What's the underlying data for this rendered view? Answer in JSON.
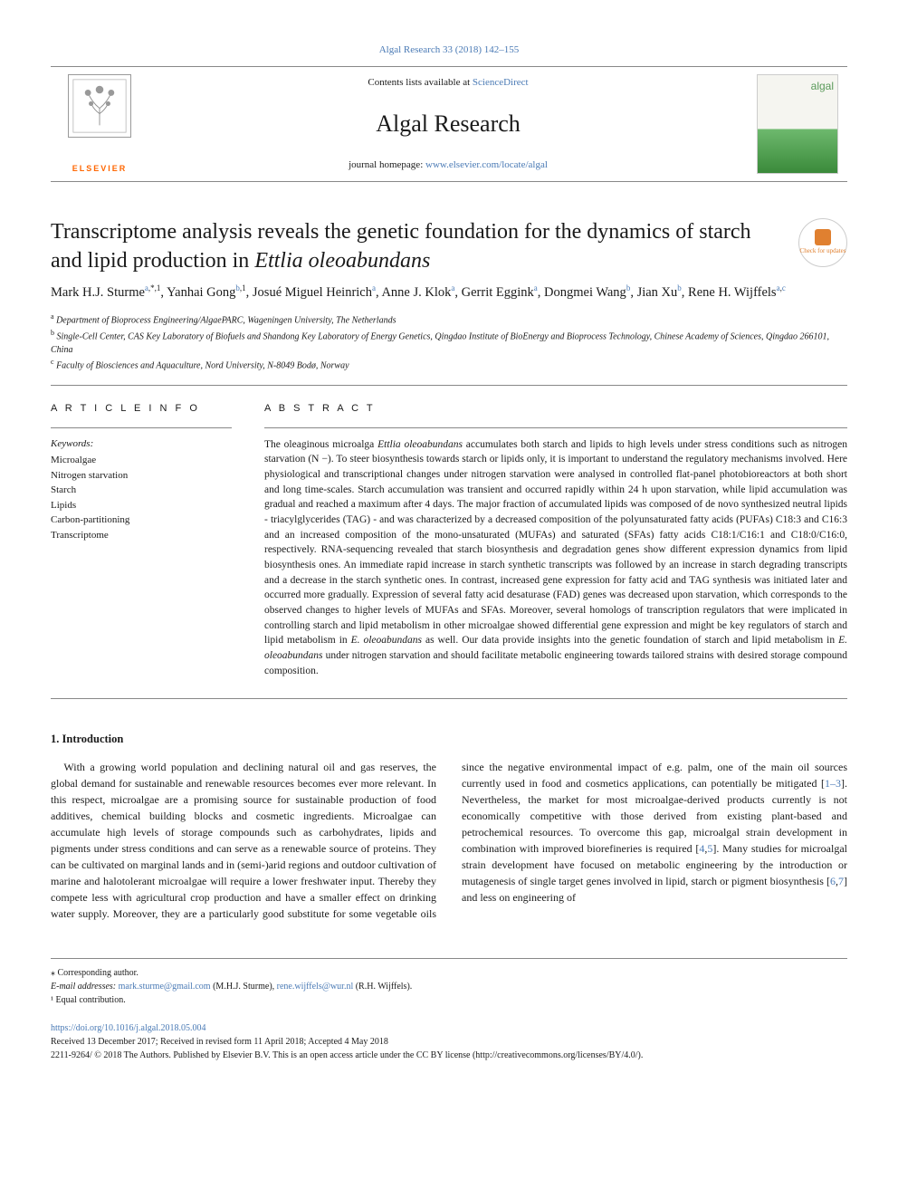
{
  "top_link_text": "Algal Research 33 (2018) 142–155",
  "top_link_color": "#4a7ab5",
  "header": {
    "contents_prefix": "Contents lists available at ",
    "contents_link": "ScienceDirect",
    "journal_name": "Algal Research",
    "homepage_prefix": "journal homepage: ",
    "homepage_link": "www.elsevier.com/locate/algal",
    "elsevier_label": "ELSEVIER",
    "cover_text": "algal"
  },
  "title_html": "Transcriptome analysis reveals the genetic foundation for the dynamics of starch and lipid production in <em>Ettlia oleoabundans</em>",
  "updates_badge": "Check for updates",
  "authors_html": "Mark H.J. Sturme<sup><a href='#'>a</a>,*,1</sup>, Yanhai Gong<sup><a href='#'>b</a>,1</sup>, Josué Miguel Heinrich<sup><a href='#'>a</a></sup>, Anne J. Klok<sup><a href='#'>a</a></sup>, Gerrit Eggink<sup><a href='#'>a</a></sup>, Dongmei Wang<sup><a href='#'>b</a></sup>, Jian Xu<sup><a href='#'>b</a></sup>, Rene H. Wijffels<sup><a href='#'>a</a>,<a href='#'>c</a></sup>",
  "affiliations": [
    {
      "sup": "a",
      "text": "Department of Bioprocess Engineering/AlgaePARC, Wageningen University, The Netherlands"
    },
    {
      "sup": "b",
      "text": "Single-Cell Center, CAS Key Laboratory of Biofuels and Shandong Key Laboratory of Energy Genetics, Qingdao Institute of BioEnergy and Bioprocess Technology, Chinese Academy of Sciences, Qingdao 266101, China"
    },
    {
      "sup": "c",
      "text": "Faculty of Biosciences and Aquaculture, Nord University, N-8049 Bodø, Norway"
    }
  ],
  "article_info_label": "A R T I C L E  I N F O",
  "abstract_label": "A B S T R A C T",
  "keywords_head": "Keywords:",
  "keywords": [
    "Microalgae",
    "Nitrogen starvation",
    "Starch",
    "Lipids",
    "Carbon-partitioning",
    "Transcriptome"
  ],
  "abstract_html": "The oleaginous microalga <em>Ettlia oleoabundans</em> accumulates both starch and lipids to high levels under stress conditions such as nitrogen starvation (N −). To steer biosynthesis towards starch or lipids only, it is important to understand the regulatory mechanisms involved. Here physiological and transcriptional changes under nitrogen starvation were analysed in controlled flat-panel photobioreactors at both short and long time-scales. Starch accumulation was transient and occurred rapidly within 24 h upon starvation, while lipid accumulation was gradual and reached a maximum after 4 days. The major fraction of accumulated lipids was composed of de novo synthesized neutral lipids - triacylglycerides (TAG) - and was characterized by a decreased composition of the polyunsaturated fatty acids (PUFAs) C18:3 and C16:3 and an increased composition of the mono-unsaturated (MUFAs) and saturated (SFAs) fatty acids C18:1/C16:1 and C18:0/C16:0, respectively. RNA-sequencing revealed that starch biosynthesis and degradation genes show different expression dynamics from lipid biosynthesis ones. An immediate rapid increase in starch synthetic transcripts was followed by an increase in starch degrading transcripts and a decrease in the starch synthetic ones. In contrast, increased gene expression for fatty acid and TAG synthesis was initiated later and occurred more gradually. Expression of several fatty acid desaturase (FAD) genes was decreased upon starvation, which corresponds to the observed changes to higher levels of MUFAs and SFAs. Moreover, several homologs of transcription regulators that were implicated in controlling starch and lipid metabolism in other microalgae showed differential gene expression and might be key regulators of starch and lipid metabolism in <em>E. oleoabundans</em> as well. Our data provide insights into the genetic foundation of starch and lipid metabolism in <em>E. oleoabundans</em> under nitrogen starvation and should facilitate metabolic engineering towards tailored strains with desired storage compound composition.",
  "intro_heading": "1. Introduction",
  "intro_html": "<p>With a growing world population and declining natural oil and gas reserves, the global demand for sustainable and renewable resources becomes ever more relevant. In this respect, microalgae are a promising source for sustainable production of food additives, chemical building blocks and cosmetic ingredients. Microalgae can accumulate high levels of storage compounds such as carbohydrates, lipids and pigments under stress conditions and can serve as a renewable source of proteins. They can be cultivated on marginal lands and in (semi-)arid regions and outdoor cultivation of marine and halotolerant microalgae will require a lower freshwater input. Thereby they compete less with agricultural crop production and have a smaller effect on drinking water supply. Moreover, they are a particularly good substitute for some vegetable oils since the negative environmental impact of e.g. palm, one of the main oil sources currently used in food and cosmetics applications, can potentially be mitigated [<a class='ref' href='#'>1–3</a>]. Nevertheless, the market for most microalgae-derived products currently is not economically competitive with those derived from existing plant-based and petrochemical resources. To overcome this gap, microalgal strain development in combination with improved biorefineries is required [<a class='ref' href='#'>4</a>,<a class='ref' href='#'>5</a>]. Many studies for microalgal strain development have focused on metabolic engineering by the introduction or mutagenesis of single target genes involved in lipid, starch or pigment biosynthesis [<a class='ref' href='#'>6</a>,<a class='ref' href='#'>7</a>] and less on engineering of</p>",
  "footnotes": {
    "corresponding": "⁎ Corresponding author.",
    "emails_label": "E-mail addresses:",
    "emails": [
      {
        "addr": "mark.sturme@gmail.com",
        "who": "(M.H.J. Sturme)"
      },
      {
        "addr": "rene.wijffels@wur.nl",
        "who": "(R.H. Wijffels)"
      }
    ],
    "equal": "¹ Equal contribution."
  },
  "doi": {
    "link": "https://doi.org/10.1016/j.algal.2018.05.004",
    "received": "Received 13 December 2017; Received in revised form 11 April 2018; Accepted 4 May 2018",
    "copyright": "2211-9264/ © 2018 The Authors. Published by Elsevier B.V. This is an open access article under the CC BY license (http://creativecommons.org/licenses/BY/4.0/)."
  },
  "colors": {
    "link": "#4a7ab5",
    "elsevier_orange": "#ff6600",
    "rule": "#888888",
    "text": "#1a1a1a"
  },
  "typography": {
    "journal_name_pt": 26,
    "title_pt": 24,
    "authors_pt": 14.5,
    "body_pt": 12,
    "abstract_pt": 11.5,
    "footnote_pt": 10
  }
}
